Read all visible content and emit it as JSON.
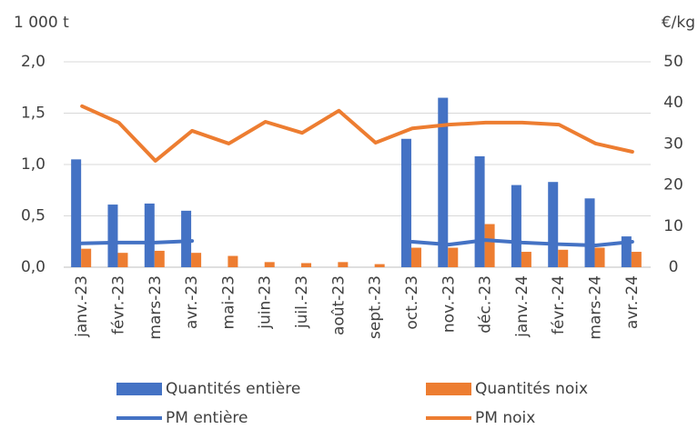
{
  "chart_data": {
    "type": "bar-line",
    "y_label": "1 000 t",
    "y2_label": "€/kg",
    "categories": [
      "janv.-23",
      "févr.-23",
      "mars-23",
      "avr.-23",
      "mai-23",
      "juin-23",
      "juil.-23",
      "août-23",
      "sept.-23",
      "oct.-23",
      "nov.-23",
      "déc.-23",
      "janv.-24",
      "févr.-24",
      "mars-24",
      "avr.-24"
    ],
    "series": [
      {
        "name": "Quantités entière",
        "kind": "bar",
        "color": "#4472c4",
        "values": [
          1.05,
          0.61,
          0.62,
          0.55,
          null,
          null,
          null,
          null,
          null,
          1.25,
          1.65,
          1.08,
          0.8,
          0.83,
          0.67,
          0.3
        ]
      },
      {
        "name": "Quantités noix",
        "kind": "bar",
        "color": "#ed7d31",
        "values": [
          0.18,
          0.14,
          0.16,
          0.14,
          0.11,
          0.05,
          0.04,
          0.05,
          0.03,
          0.19,
          0.19,
          0.42,
          0.15,
          0.17,
          0.19,
          0.15
        ]
      },
      {
        "name": "PM entière",
        "kind": "line",
        "axis": "y2",
        "color": "#4472c4",
        "values": [
          5.8,
          6.0,
          6.0,
          6.4,
          null,
          null,
          null,
          null,
          null,
          6.2,
          5.5,
          6.6,
          6.0,
          5.6,
          5.3,
          6.2
        ]
      },
      {
        "name": "PM noix",
        "kind": "line",
        "axis": "y2",
        "color": "#ed7d31",
        "values": [
          39.2,
          35.2,
          25.9,
          33.2,
          30.1,
          35.4,
          32.7,
          38.1,
          30.3,
          33.8,
          34.7,
          35.2,
          35.2,
          34.7,
          30.1,
          28.1
        ]
      }
    ],
    "ylim": [
      0,
      2
    ],
    "yticks": [
      {
        "value": 0,
        "label": "0,0"
      },
      {
        "value": 0.5,
        "label": "0,5"
      },
      {
        "value": 1,
        "label": "1,0"
      },
      {
        "value": 1.5,
        "label": "1,5"
      },
      {
        "value": 2,
        "label": "2,0"
      }
    ],
    "y2lim": [
      0,
      50
    ],
    "y2ticks": [
      0,
      10,
      20,
      30,
      40,
      50
    ],
    "grid": true
  }
}
